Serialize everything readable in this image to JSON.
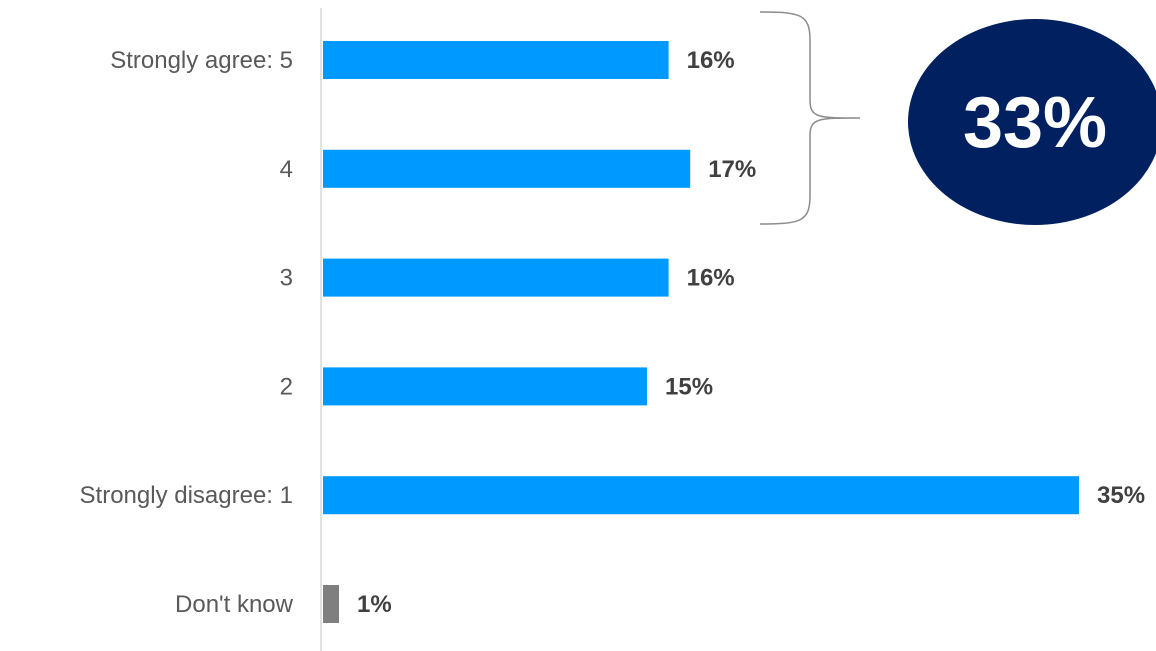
{
  "chart_data": {
    "type": "bar",
    "orientation": "horizontal",
    "categories": [
      "Strongly agree: 5",
      "4",
      "3",
      "2",
      "Strongly disagree: 1",
      "Don't know"
    ],
    "values": [
      16,
      17,
      16,
      15,
      35,
      1
    ],
    "value_labels": [
      "16%",
      "17%",
      "16%",
      "15%",
      "35%",
      "1%"
    ],
    "bar_colors": [
      "#0099FF",
      "#0099FF",
      "#0099FF",
      "#0099FF",
      "#0099FF",
      "#7F7F7F"
    ],
    "xlim": [
      0,
      35
    ],
    "grid": false,
    "legend": "none",
    "title": "",
    "xlabel": "",
    "ylabel": "",
    "annotation": {
      "type": "bracket-callout",
      "spans_categories": [
        "Strongly agree: 5",
        "4"
      ],
      "text": "33%",
      "fill_color": "#002060",
      "text_color": "#FFFFFF"
    }
  }
}
